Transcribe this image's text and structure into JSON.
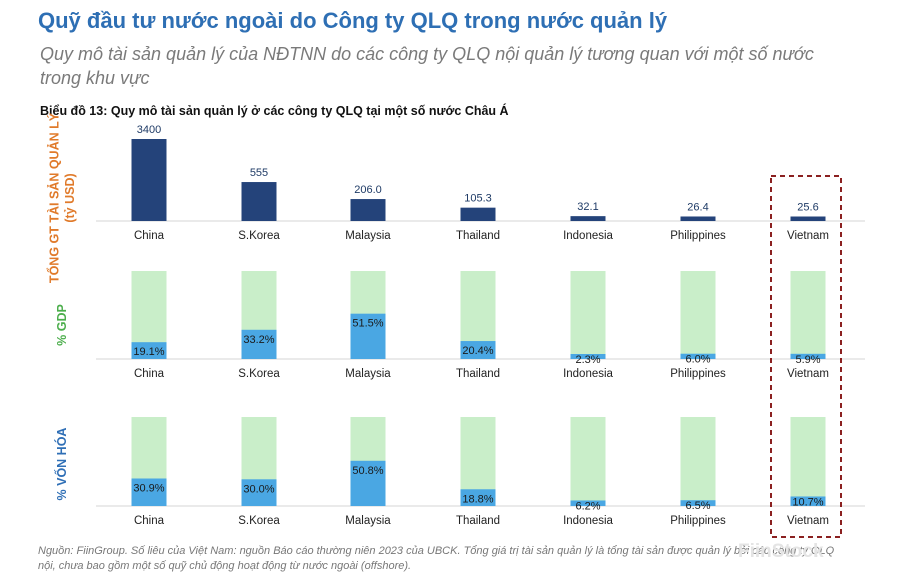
{
  "header": {
    "title": "Quỹ đầu tư nước ngoài do Công ty QLQ trong nước quản lý",
    "subtitle": "Quy mô tài sản quản lý của NĐTNN do các công ty QLQ nội quản lý tương quan với một số nước trong khu vực"
  },
  "footer": {
    "source": "Nguồn: FiinGroup. Số liêu của Việt Nam: nguồn Báo cáo thường niên 2023 của UBCK. Tổng giá trị tài sản quản lý là tổng tài sản được quản lý bởi các công ty QLQ nội, chưa bao gồm một số quỹ chủ động hoạt động từ nước ngoài (offshore).",
    "watermark": "FiinStock"
  },
  "colors": {
    "dark_bar": "#24437a",
    "light_bar": "#c9eec9",
    "pct_bar": "#4aa7e3",
    "axis_label_1": "#e07a2a",
    "axis_label_2": "#4cae4c",
    "axis_label_3": "#2f6fb6",
    "highlight": "#8b2020"
  },
  "chart_data": [
    {
      "type": "bar",
      "title": "Biểu đồ 13: Quy mô tài sản quản lý ở các công ty QLQ tại một số nước Châu Á",
      "ylabel": "TỔNG GT TÀI SẢN QUẢN LÝ (tỷ USD)",
      "categories": [
        "China",
        "S.Korea",
        "Malaysia",
        "Thailand",
        "Indonesia",
        "Philippines",
        "Vietnam"
      ],
      "values": [
        3400,
        555,
        206.0,
        105.3,
        32.1,
        26.4,
        25.6
      ],
      "labels": [
        "3400",
        "555",
        "206.0",
        "105.3",
        "32.1",
        "26.4",
        "25.6"
      ],
      "highlight": "Vietnam"
    },
    {
      "type": "bar",
      "ylabel": "% GDP",
      "categories": [
        "China",
        "S.Korea",
        "Malaysia",
        "Thailand",
        "Indonesia",
        "Philippines",
        "Vietnam"
      ],
      "values": [
        19.1,
        33.2,
        51.5,
        20.4,
        2.3,
        6.0,
        5.9
      ],
      "labels": [
        "19.1%",
        "33.2%",
        "51.5%",
        "20.4%",
        "2.3%",
        "6.0%",
        "5.9%"
      ],
      "ylim": [
        0,
        100
      ]
    },
    {
      "type": "bar",
      "ylabel": "% VỐN HÓA",
      "categories": [
        "China",
        "S.Korea",
        "Malaysia",
        "Thailand",
        "Indonesia",
        "Philippines",
        "Vietnam"
      ],
      "values": [
        30.9,
        30.0,
        50.8,
        18.8,
        6.2,
        6.5,
        10.7
      ],
      "labels": [
        "30.9%",
        "30.0%",
        "50.8%",
        "18.8%",
        "6.2%",
        "6.5%",
        "10.7%"
      ],
      "ylim": [
        0,
        100
      ]
    }
  ]
}
